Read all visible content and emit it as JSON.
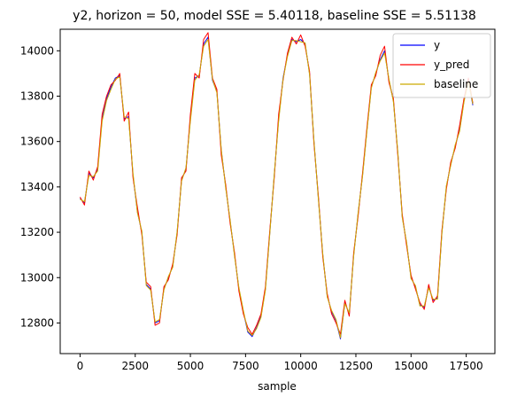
{
  "chart_data": {
    "type": "line",
    "title": "y2, horizon = 50, model SSE = 5.40118, baseline SSE = 5.51138",
    "xlabel": "sample",
    "ylabel": "",
    "xlim": [
      -900,
      18800
    ],
    "ylim": [
      12665,
      14095
    ],
    "xticks": [
      0,
      2500,
      5000,
      7500,
      10000,
      12500,
      15000,
      17500
    ],
    "yticks": [
      12800,
      13000,
      13200,
      13400,
      13600,
      13800,
      14000
    ],
    "legend_position": "top-right",
    "series": [
      {
        "name": "y",
        "color": "#0000ff",
        "x": [
          0,
          200,
          400,
          600,
          800,
          1000,
          1200,
          1400,
          1600,
          1800,
          2000,
          2200,
          2400,
          2600,
          2800,
          3000,
          3200,
          3400,
          3600,
          3800,
          4000,
          4200,
          4400,
          4600,
          4800,
          5000,
          5200,
          5400,
          5600,
          5800,
          6000,
          6200,
          6400,
          6600,
          6800,
          7000,
          7200,
          7400,
          7600,
          7800,
          8000,
          8200,
          8400,
          8600,
          8800,
          9000,
          9200,
          9400,
          9600,
          9800,
          10000,
          10200,
          10400,
          10600,
          10800,
          11000,
          11200,
          11400,
          11600,
          11800,
          12000,
          12200,
          12400,
          12600,
          12800,
          13000,
          13200,
          13400,
          13600,
          13800,
          14000,
          14200,
          14400,
          14600,
          14800,
          15000,
          15200,
          15400,
          15600,
          15800,
          16000,
          16200,
          16400,
          16600,
          16800,
          17000,
          17200,
          17400,
          17600,
          17800
        ],
        "values": [
          13350,
          13330,
          13460,
          13440,
          13480,
          13700,
          13790,
          13840,
          13880,
          13890,
          13700,
          13710,
          13450,
          13290,
          13200,
          12970,
          12950,
          12800,
          12810,
          12950,
          13000,
          13050,
          13200,
          13430,
          13480,
          13700,
          13880,
          13890,
          14030,
          14060,
          13870,
          13820,
          13560,
          13400,
          13250,
          13100,
          12950,
          12850,
          12760,
          12740,
          12780,
          12830,
          12950,
          13200,
          13450,
          13700,
          13880,
          13980,
          14050,
          14040,
          14050,
          14030,
          13900,
          13600,
          13350,
          13100,
          12920,
          12850,
          12810,
          12730,
          12890,
          12840,
          13100,
          13280,
          13450,
          13650,
          13840,
          13900,
          13960,
          14000,
          13870,
          13780,
          13550,
          13270,
          13150,
          13000,
          12960,
          12880,
          12870,
          12960,
          12900,
          12910,
          13200,
          13400,
          13500,
          13580,
          13650,
          13780,
          13870,
          13760
        ]
      },
      {
        "name": "y_pred",
        "color": "#ff0000",
        "x": [
          0,
          200,
          400,
          600,
          800,
          1000,
          1200,
          1400,
          1600,
          1800,
          2000,
          2200,
          2400,
          2600,
          2800,
          3000,
          3200,
          3400,
          3600,
          3800,
          4000,
          4200,
          4400,
          4600,
          4800,
          5000,
          5200,
          5400,
          5600,
          5800,
          6000,
          6200,
          6400,
          6600,
          6800,
          7000,
          7200,
          7400,
          7600,
          7800,
          8000,
          8200,
          8400,
          8600,
          8800,
          9000,
          9200,
          9400,
          9600,
          9800,
          10000,
          10200,
          10400,
          10600,
          10800,
          11000,
          11200,
          11400,
          11600,
          11800,
          12000,
          12200,
          12400,
          12600,
          12800,
          13000,
          13200,
          13400,
          13600,
          13800,
          14000,
          14200,
          14400,
          14600,
          14800,
          15000,
          15200,
          15400,
          15600,
          15800,
          16000,
          16200,
          16400,
          16600,
          16800,
          17000,
          17200,
          17400,
          17600,
          17800
        ],
        "values": [
          13355,
          13320,
          13470,
          13430,
          13490,
          13720,
          13800,
          13850,
          13870,
          13900,
          13690,
          13730,
          13440,
          13310,
          13190,
          12980,
          12960,
          12790,
          12800,
          12960,
          12990,
          13060,
          13190,
          13440,
          13470,
          13720,
          13900,
          13880,
          14050,
          14080,
          13880,
          13830,
          13540,
          13410,
          13240,
          13110,
          12940,
          12840,
          12780,
          12750,
          12790,
          12840,
          12960,
          13210,
          13440,
          13720,
          13870,
          13990,
          14060,
          14030,
          14070,
          14020,
          13910,
          13590,
          13360,
          13090,
          12930,
          12840,
          12800,
          12750,
          12900,
          12830,
          13110,
          13270,
          13460,
          13660,
          13850,
          13890,
          13980,
          14020,
          13860,
          13790,
          13540,
          13280,
          13140,
          13010,
          12950,
          12890,
          12860,
          12970,
          12890,
          12920,
          13210,
          13390,
          13510,
          13570,
          13670,
          13790,
          13880,
          13770
        ]
      },
      {
        "name": "baseline",
        "color": "#ccaa00",
        "x": [
          0,
          200,
          400,
          600,
          800,
          1000,
          1200,
          1400,
          1600,
          1800,
          2000,
          2200,
          2400,
          2600,
          2800,
          3000,
          3200,
          3400,
          3600,
          3800,
          4000,
          4200,
          4400,
          4600,
          4800,
          5000,
          5200,
          5400,
          5600,
          5800,
          6000,
          6200,
          6400,
          6600,
          6800,
          7000,
          7200,
          7400,
          7600,
          7800,
          8000,
          8200,
          8400,
          8600,
          8800,
          9000,
          9200,
          9400,
          9600,
          9800,
          10000,
          10200,
          10400,
          10600,
          10800,
          11000,
          11200,
          11400,
          11600,
          11800,
          12000,
          12200,
          12400,
          12600,
          12800,
          13000,
          13200,
          13400,
          13600,
          13800,
          14000,
          14200,
          14400,
          14600,
          14800,
          15000,
          15200,
          15400,
          15600,
          15800,
          16000,
          16200,
          16400,
          16600,
          16800,
          17000,
          17200,
          17400,
          17600,
          17800
        ],
        "values": [
          13345,
          13335,
          13450,
          13445,
          13470,
          13690,
          13780,
          13830,
          13875,
          13885,
          13710,
          13700,
          13460,
          13285,
          13205,
          12965,
          12945,
          12805,
          12815,
          12945,
          13005,
          13045,
          13205,
          13425,
          13485,
          13690,
          13870,
          13895,
          14020,
          14050,
          13875,
          13815,
          13565,
          13395,
          13255,
          13095,
          12955,
          12855,
          12765,
          12745,
          12775,
          12825,
          12945,
          13195,
          13455,
          13690,
          13875,
          13975,
          14045,
          14045,
          14040,
          14035,
          13895,
          13605,
          13345,
          13105,
          12915,
          12855,
          12815,
          12735,
          12885,
          12845,
          13095,
          13285,
          13445,
          13645,
          13835,
          13905,
          13955,
          13990,
          13875,
          13775,
          13555,
          13265,
          13155,
          12995,
          12965,
          12875,
          12875,
          12955,
          12905,
          12905,
          13195,
          13405,
          13495,
          13585,
          13645,
          13775,
          13865,
          13765
        ]
      }
    ]
  }
}
